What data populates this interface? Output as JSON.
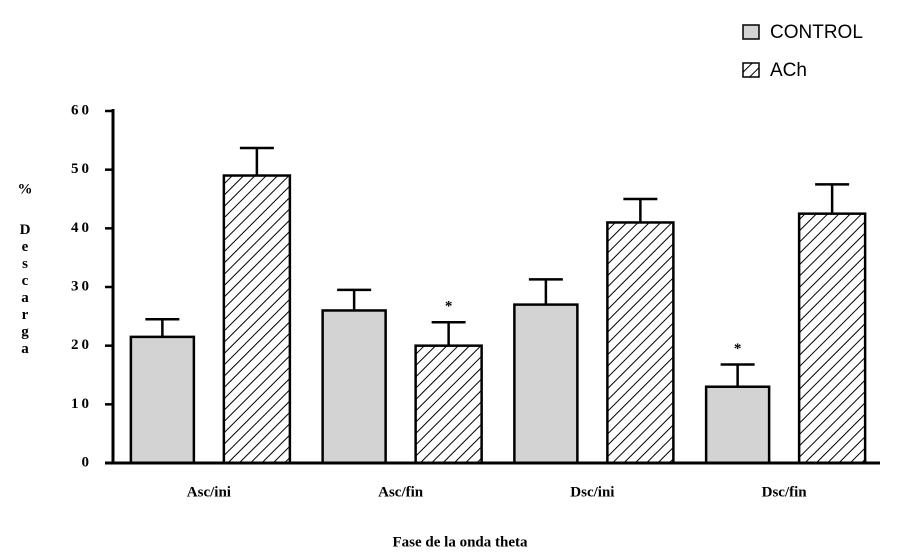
{
  "chart_data": {
    "type": "bar",
    "categories": [
      "Asc/ini",
      "Asc/fin",
      "Dsc/ini",
      "Dsc/fin"
    ],
    "series": [
      {
        "name": "CONTROL",
        "color": "#d3d3d3",
        "pattern": "solid",
        "values": [
          21.5,
          26,
          27,
          13
        ],
        "errors": [
          3,
          3.5,
          4.3,
          3.8
        ]
      },
      {
        "name": "ACh",
        "color": "#ffffff",
        "pattern": "hatch",
        "values": [
          49,
          20,
          41,
          42.5
        ],
        "errors": [
          4.7,
          4,
          4,
          5
        ]
      }
    ],
    "annotations": [
      {
        "text": "*",
        "category": "Asc/fin",
        "series": "ACh"
      },
      {
        "text": "*",
        "category": "Dsc/fin",
        "series": "CONTROL"
      }
    ],
    "xlabel": "Fase de la onda theta",
    "ylabel_unit": "%",
    "ylabel": "Descarga",
    "ylim": [
      0,
      60
    ],
    "yticks": [
      0,
      10,
      20,
      30,
      40,
      50,
      60
    ],
    "grid": false,
    "legend": "top-right"
  }
}
